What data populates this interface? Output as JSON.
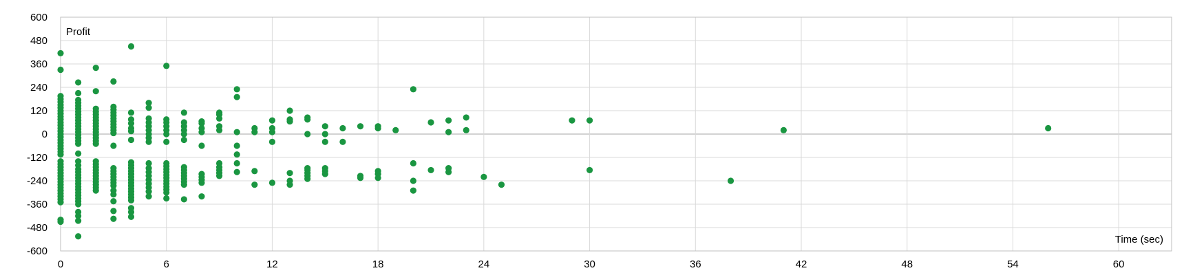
{
  "chart_data": {
    "type": "scatter",
    "title": "",
    "xlabel": "Time (sec)",
    "ylabel": "Profit",
    "xlim": [
      0,
      63
    ],
    "ylim": [
      -600,
      600
    ],
    "x_ticks": [
      0,
      6,
      12,
      18,
      24,
      30,
      36,
      42,
      48,
      54,
      60
    ],
    "y_ticks": [
      600,
      480,
      360,
      240,
      120,
      0,
      -120,
      -240,
      -360,
      -480,
      -600
    ],
    "grid": true,
    "legend": "none",
    "marker_color": "#1a9641",
    "points": [
      [
        0,
        415
      ],
      [
        0,
        330
      ],
      [
        0,
        195
      ],
      [
        0,
        180
      ],
      [
        0,
        165
      ],
      [
        0,
        150
      ],
      [
        0,
        135
      ],
      [
        0,
        120
      ],
      [
        0,
        105
      ],
      [
        0,
        90
      ],
      [
        0,
        75
      ],
      [
        0,
        60
      ],
      [
        0,
        45
      ],
      [
        0,
        30
      ],
      [
        0,
        15
      ],
      [
        0,
        0
      ],
      [
        0,
        -15
      ],
      [
        0,
        -30
      ],
      [
        0,
        -45
      ],
      [
        0,
        -60
      ],
      [
        0,
        -75
      ],
      [
        0,
        -90
      ],
      [
        0,
        -105
      ],
      [
        0,
        -140
      ],
      [
        0,
        -155
      ],
      [
        0,
        -170
      ],
      [
        0,
        -185
      ],
      [
        0,
        -200
      ],
      [
        0,
        -215
      ],
      [
        0,
        -230
      ],
      [
        0,
        -245
      ],
      [
        0,
        -260
      ],
      [
        0,
        -275
      ],
      [
        0,
        -290
      ],
      [
        0,
        -305
      ],
      [
        0,
        -320
      ],
      [
        0,
        -335
      ],
      [
        0,
        -350
      ],
      [
        0,
        -440
      ],
      [
        0,
        -450
      ],
      [
        1,
        265
      ],
      [
        1,
        210
      ],
      [
        1,
        175
      ],
      [
        1,
        160
      ],
      [
        1,
        145
      ],
      [
        1,
        130
      ],
      [
        1,
        115
      ],
      [
        1,
        100
      ],
      [
        1,
        85
      ],
      [
        1,
        70
      ],
      [
        1,
        55
      ],
      [
        1,
        40
      ],
      [
        1,
        25
      ],
      [
        1,
        10
      ],
      [
        1,
        -5
      ],
      [
        1,
        -20
      ],
      [
        1,
        -35
      ],
      [
        1,
        -50
      ],
      [
        1,
        -100
      ],
      [
        1,
        -140
      ],
      [
        1,
        -160
      ],
      [
        1,
        -180
      ],
      [
        1,
        -195
      ],
      [
        1,
        -210
      ],
      [
        1,
        -225
      ],
      [
        1,
        -240
      ],
      [
        1,
        -255
      ],
      [
        1,
        -270
      ],
      [
        1,
        -285
      ],
      [
        1,
        -300
      ],
      [
        1,
        -315
      ],
      [
        1,
        -330
      ],
      [
        1,
        -345
      ],
      [
        1,
        -360
      ],
      [
        1,
        -400
      ],
      [
        1,
        -420
      ],
      [
        1,
        -445
      ],
      [
        1,
        -525
      ],
      [
        2,
        340
      ],
      [
        2,
        220
      ],
      [
        2,
        130
      ],
      [
        2,
        115
      ],
      [
        2,
        100
      ],
      [
        2,
        85
      ],
      [
        2,
        70
      ],
      [
        2,
        55
      ],
      [
        2,
        40
      ],
      [
        2,
        25
      ],
      [
        2,
        10
      ],
      [
        2,
        -5
      ],
      [
        2,
        -20
      ],
      [
        2,
        -35
      ],
      [
        2,
        -50
      ],
      [
        2,
        -140
      ],
      [
        2,
        -155
      ],
      [
        2,
        -170
      ],
      [
        2,
        -185
      ],
      [
        2,
        -200
      ],
      [
        2,
        -215
      ],
      [
        2,
        -230
      ],
      [
        2,
        -245
      ],
      [
        2,
        -260
      ],
      [
        2,
        -275
      ],
      [
        2,
        -290
      ],
      [
        3,
        270
      ],
      [
        3,
        140
      ],
      [
        3,
        125
      ],
      [
        3,
        110
      ],
      [
        3,
        95
      ],
      [
        3,
        80
      ],
      [
        3,
        65
      ],
      [
        3,
        50
      ],
      [
        3,
        35
      ],
      [
        3,
        20
      ],
      [
        3,
        5
      ],
      [
        3,
        -60
      ],
      [
        3,
        -175
      ],
      [
        3,
        -190
      ],
      [
        3,
        -205
      ],
      [
        3,
        -220
      ],
      [
        3,
        -235
      ],
      [
        3,
        -250
      ],
      [
        3,
        -265
      ],
      [
        3,
        -290
      ],
      [
        3,
        -310
      ],
      [
        3,
        -345
      ],
      [
        3,
        -395
      ],
      [
        3,
        -435
      ],
      [
        4,
        450
      ],
      [
        4,
        110
      ],
      [
        4,
        75
      ],
      [
        4,
        55
      ],
      [
        4,
        30
      ],
      [
        4,
        15
      ],
      [
        4,
        -30
      ],
      [
        4,
        -145
      ],
      [
        4,
        -160
      ],
      [
        4,
        -175
      ],
      [
        4,
        -190
      ],
      [
        4,
        -205
      ],
      [
        4,
        -220
      ],
      [
        4,
        -235
      ],
      [
        4,
        -250
      ],
      [
        4,
        -265
      ],
      [
        4,
        -280
      ],
      [
        4,
        -295
      ],
      [
        4,
        -310
      ],
      [
        4,
        -325
      ],
      [
        4,
        -340
      ],
      [
        4,
        -380
      ],
      [
        4,
        -400
      ],
      [
        4,
        -425
      ],
      [
        5,
        160
      ],
      [
        5,
        135
      ],
      [
        5,
        80
      ],
      [
        5,
        60
      ],
      [
        5,
        40
      ],
      [
        5,
        20
      ],
      [
        5,
        0
      ],
      [
        5,
        -20
      ],
      [
        5,
        -40
      ],
      [
        5,
        -150
      ],
      [
        5,
        -175
      ],
      [
        5,
        -195
      ],
      [
        5,
        -215
      ],
      [
        5,
        -235
      ],
      [
        5,
        -255
      ],
      [
        5,
        -275
      ],
      [
        5,
        -295
      ],
      [
        5,
        -320
      ],
      [
        6,
        350
      ],
      [
        6,
        75
      ],
      [
        6,
        60
      ],
      [
        6,
        40
      ],
      [
        6,
        20
      ],
      [
        6,
        0
      ],
      [
        6,
        -40
      ],
      [
        6,
        -150
      ],
      [
        6,
        -165
      ],
      [
        6,
        -180
      ],
      [
        6,
        -195
      ],
      [
        6,
        -210
      ],
      [
        6,
        -225
      ],
      [
        6,
        -240
      ],
      [
        6,
        -255
      ],
      [
        6,
        -270
      ],
      [
        6,
        -285
      ],
      [
        6,
        -300
      ],
      [
        6,
        -330
      ],
      [
        7,
        110
      ],
      [
        7,
        60
      ],
      [
        7,
        40
      ],
      [
        7,
        20
      ],
      [
        7,
        0
      ],
      [
        7,
        -30
      ],
      [
        7,
        -170
      ],
      [
        7,
        -185
      ],
      [
        7,
        -200
      ],
      [
        7,
        -215
      ],
      [
        7,
        -230
      ],
      [
        7,
        -245
      ],
      [
        7,
        -260
      ],
      [
        7,
        -335
      ],
      [
        8,
        65
      ],
      [
        8,
        55
      ],
      [
        8,
        30
      ],
      [
        8,
        10
      ],
      [
        8,
        -60
      ],
      [
        8,
        -205
      ],
      [
        8,
        -220
      ],
      [
        8,
        -235
      ],
      [
        8,
        -250
      ],
      [
        8,
        -320
      ],
      [
        9,
        110
      ],
      [
        9,
        100
      ],
      [
        9,
        80
      ],
      [
        9,
        40
      ],
      [
        9,
        20
      ],
      [
        9,
        -150
      ],
      [
        9,
        -170
      ],
      [
        9,
        -185
      ],
      [
        9,
        -200
      ],
      [
        9,
        -215
      ],
      [
        10,
        230
      ],
      [
        10,
        190
      ],
      [
        10,
        10
      ],
      [
        10,
        -60
      ],
      [
        10,
        -105
      ],
      [
        10,
        -150
      ],
      [
        10,
        -195
      ],
      [
        11,
        30
      ],
      [
        11,
        10
      ],
      [
        11,
        -190
      ],
      [
        11,
        -260
      ],
      [
        12,
        70
      ],
      [
        12,
        30
      ],
      [
        12,
        10
      ],
      [
        12,
        -40
      ],
      [
        12,
        -250
      ],
      [
        13,
        120
      ],
      [
        13,
        75
      ],
      [
        13,
        65
      ],
      [
        13,
        -200
      ],
      [
        13,
        -240
      ],
      [
        13,
        -260
      ],
      [
        14,
        85
      ],
      [
        14,
        75
      ],
      [
        14,
        0
      ],
      [
        14,
        -175
      ],
      [
        14,
        -185
      ],
      [
        14,
        -200
      ],
      [
        14,
        -215
      ],
      [
        14,
        -230
      ],
      [
        15,
        40
      ],
      [
        15,
        0
      ],
      [
        15,
        -40
      ],
      [
        15,
        -175
      ],
      [
        15,
        -190
      ],
      [
        15,
        -205
      ],
      [
        16,
        30
      ],
      [
        16,
        -40
      ],
      [
        17,
        40
      ],
      [
        17,
        -215
      ],
      [
        17,
        -225
      ],
      [
        18,
        40
      ],
      [
        18,
        30
      ],
      [
        18,
        -190
      ],
      [
        18,
        -205
      ],
      [
        18,
        -225
      ],
      [
        19,
        20
      ],
      [
        20,
        230
      ],
      [
        20,
        -150
      ],
      [
        20,
        -240
      ],
      [
        20,
        -290
      ],
      [
        21,
        60
      ],
      [
        21,
        -185
      ],
      [
        22,
        70
      ],
      [
        22,
        10
      ],
      [
        22,
        -175
      ],
      [
        22,
        -195
      ],
      [
        23,
        85
      ],
      [
        23,
        20
      ],
      [
        24,
        -220
      ],
      [
        25,
        -260
      ],
      [
        29,
        70
      ],
      [
        30,
        70
      ],
      [
        30,
        -185
      ],
      [
        38,
        -240
      ],
      [
        41,
        20
      ],
      [
        56,
        30
      ]
    ]
  }
}
